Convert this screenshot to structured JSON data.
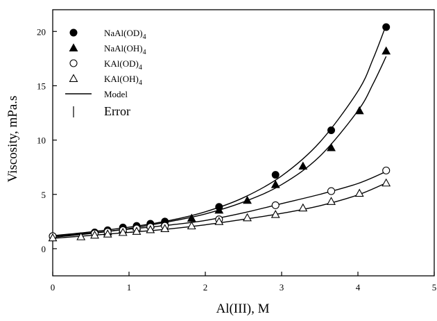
{
  "chart_data": {
    "type": "scatter",
    "xlabel": "Al(III), M",
    "ylabel": "Viscosity, mPa.s",
    "xlim": [
      0,
      5
    ],
    "ylim": [
      -2.5,
      22
    ],
    "xticks": [
      "0",
      "1",
      "2",
      "3",
      "4",
      "5"
    ],
    "yticks": [
      "0",
      "5",
      "10",
      "15",
      "20"
    ],
    "legend_position": "top-left",
    "series": [
      {
        "name": "NaAl(OD)4",
        "marker": "filled-circle",
        "x": [
          0,
          0.55,
          0.72,
          0.92,
          1.1,
          1.28,
          1.47,
          2.18,
          2.92,
          3.65,
          4.37
        ],
        "y": [
          1.15,
          1.5,
          1.7,
          1.95,
          2.1,
          2.3,
          2.5,
          3.85,
          6.8,
          10.9,
          20.4
        ]
      },
      {
        "name": "NaAl(OH)4",
        "marker": "filled-triangle",
        "x": [
          0.72,
          0.92,
          1.1,
          1.28,
          1.47,
          1.82,
          2.18,
          2.55,
          2.92,
          3.28,
          3.65,
          4.02,
          4.37
        ],
        "y": [
          1.55,
          1.8,
          2.0,
          2.2,
          2.45,
          2.8,
          3.55,
          4.45,
          5.9,
          7.6,
          9.3,
          12.7,
          18.2
        ]
      },
      {
        "name": "KAl(OD)4",
        "marker": "open-circle",
        "x": [
          0,
          0.55,
          0.72,
          0.92,
          1.1,
          1.28,
          1.47,
          2.18,
          2.92,
          3.65,
          4.37
        ],
        "y": [
          1.15,
          1.4,
          1.55,
          1.7,
          1.85,
          2.0,
          2.1,
          2.7,
          4.0,
          5.3,
          7.2
        ]
      },
      {
        "name": "KAl(OH)4",
        "marker": "open-triangle",
        "x": [
          0,
          0.37,
          0.55,
          0.72,
          0.92,
          1.1,
          1.28,
          1.47,
          1.82,
          2.18,
          2.55,
          2.92,
          3.28,
          3.65,
          4.02,
          4.37
        ],
        "y": [
          1.0,
          1.1,
          1.25,
          1.35,
          1.5,
          1.6,
          1.75,
          1.85,
          2.1,
          2.5,
          2.85,
          3.15,
          3.75,
          4.35,
          5.1,
          6.05
        ]
      }
    ],
    "model_curves": [
      {
        "x": [
          0,
          0.5,
          1.0,
          1.5,
          2.0,
          2.5,
          3.0,
          3.5,
          4.0,
          4.2,
          4.37
        ],
        "y": [
          1.2,
          1.55,
          1.98,
          2.55,
          3.4,
          4.7,
          6.7,
          9.8,
          14.5,
          17.5,
          20.6
        ]
      },
      {
        "x": [
          0,
          0.5,
          1.0,
          1.5,
          2.0,
          2.5,
          3.0,
          3.5,
          4.0,
          4.2,
          4.37
        ],
        "y": [
          1.05,
          1.4,
          1.85,
          2.45,
          3.2,
          4.3,
          5.9,
          8.5,
          12.7,
          15.2,
          17.7
        ]
      },
      {
        "x": [
          0,
          0.5,
          1.0,
          1.5,
          2.0,
          2.5,
          3.0,
          3.5,
          4.0,
          4.37
        ],
        "y": [
          1.15,
          1.45,
          1.8,
          2.15,
          2.6,
          3.3,
          4.15,
          5.0,
          6.0,
          7.1
        ]
      },
      {
        "x": [
          0,
          0.5,
          1.0,
          1.5,
          2.0,
          2.5,
          3.0,
          3.5,
          4.0,
          4.37
        ],
        "y": [
          0.95,
          1.22,
          1.5,
          1.8,
          2.2,
          2.7,
          3.25,
          3.95,
          4.95,
          6.05
        ]
      }
    ],
    "legend": [
      {
        "label": "NaAl(OD)4",
        "symbol": "filled-circle"
      },
      {
        "label": "NaAl(OH)4",
        "symbol": "filled-triangle"
      },
      {
        "label": "KAl(OD)4",
        "symbol": "open-circle"
      },
      {
        "label": "KAl(OH)4",
        "symbol": "open-triangle"
      },
      {
        "label": "Model",
        "symbol": "line"
      },
      {
        "label": "Error",
        "symbol": "errorbar"
      }
    ]
  }
}
